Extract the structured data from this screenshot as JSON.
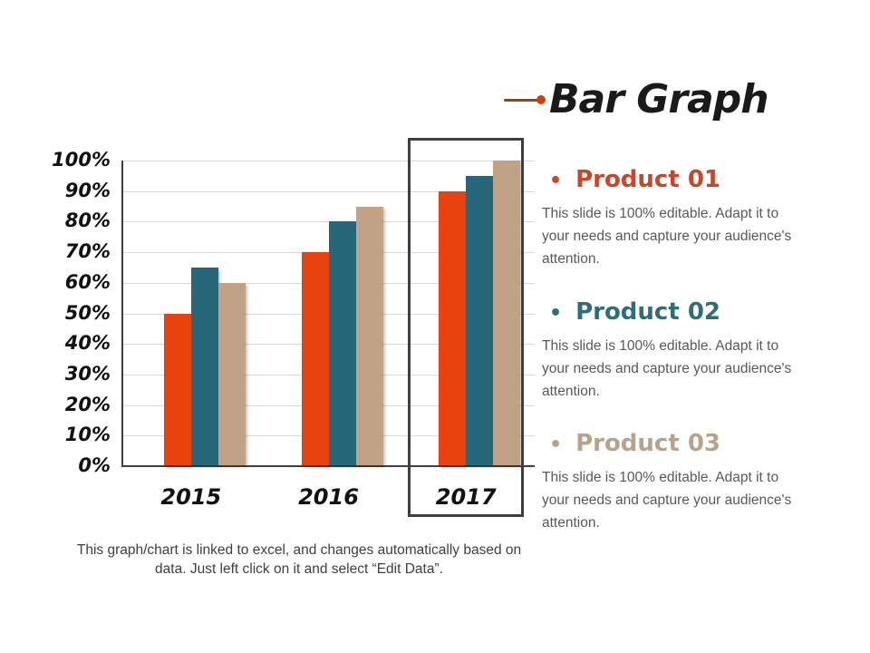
{
  "title": {
    "text": "Bar Graph",
    "color": "#1a1a1a",
    "arrow_line_color": "#a33a10",
    "arrow_dot_color": "#cc400d"
  },
  "chart_data": {
    "type": "bar",
    "title": "",
    "xlabel": "",
    "ylabel": "",
    "categories": [
      "2015",
      "2016",
      "2017"
    ],
    "series": [
      {
        "name": "Product 01",
        "color": "#e8430e",
        "values": [
          50,
          70,
          90
        ]
      },
      {
        "name": "Product 02",
        "color": "#26687a",
        "values": [
          65,
          80,
          95
        ]
      },
      {
        "name": "Product 03",
        "color": "#c2a284",
        "values": [
          60,
          85,
          100
        ]
      }
    ],
    "y_ticks": [
      "100%",
      "90%",
      "80%",
      "70%",
      "60%",
      "50%",
      "40%",
      "30%",
      "20%",
      "10%",
      "0%"
    ],
    "ylim": [
      0,
      100
    ],
    "grid": true,
    "grid_color": "#d9d9d9",
    "axis_color": "#3f3f3f",
    "legend_position": "none",
    "highlighted_category": "2017",
    "highlight_border_color": "#3f3f3f"
  },
  "caption": {
    "text": "This graph/chart is linked to excel, and changes automatically based on data. Just left click on it and select “Edit Data”."
  },
  "products": [
    {
      "bullet": "•",
      "heading": "Product 01",
      "color": "#c7472b",
      "body": "This slide is 100% editable. Adapt it to your needs and capture your audience's attention."
    },
    {
      "bullet": "•",
      "heading": "Product 02",
      "color": "#2e6f75",
      "body": "This slide is 100% editable. Adapt it to your needs and capture your audience's attention."
    },
    {
      "bullet": "•",
      "heading": "Product 03",
      "color": "#b7a28d",
      "body": "This slide is 100% editable. Adapt it to your needs and capture your audience's attention."
    }
  ]
}
